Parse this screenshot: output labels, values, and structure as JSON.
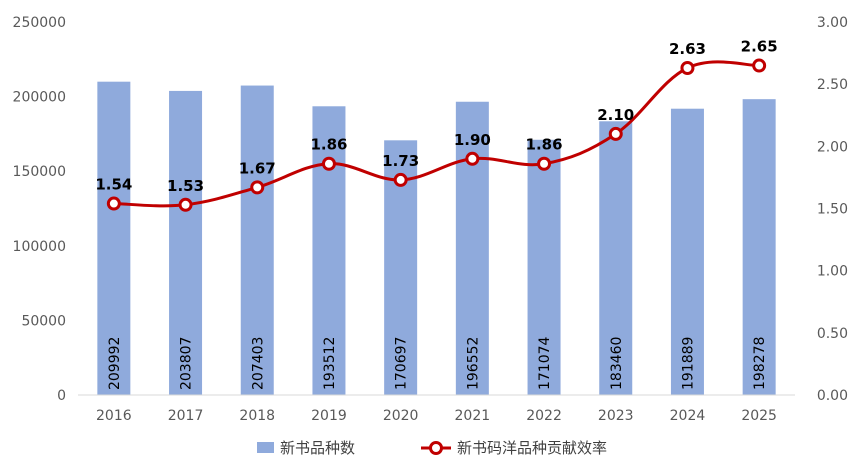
{
  "chart_data": {
    "type": "bar",
    "categories": [
      "2016",
      "2017",
      "2018",
      "2019",
      "2020",
      "2021",
      "2022",
      "2023",
      "2024",
      "2025"
    ],
    "series": [
      {
        "name": "新书品种数",
        "type": "bar",
        "axis": "left",
        "color": "#8FAADC",
        "values": [
          209992,
          203807,
          207403,
          193512,
          170697,
          196552,
          171074,
          183460,
          191889,
          198278
        ],
        "labels": [
          "209992",
          "203807",
          "207403",
          "193512",
          "170697",
          "196552",
          "171074",
          "183460",
          "191889",
          "198278"
        ]
      },
      {
        "name": "新书码洋品种贡献效率",
        "type": "line",
        "axis": "right",
        "color": "#C00000",
        "values": [
          1.54,
          1.53,
          1.67,
          1.86,
          1.73,
          1.9,
          1.86,
          2.1,
          2.63,
          2.65
        ],
        "labels": [
          "1.54",
          "1.53",
          "1.67",
          "1.86",
          "1.73",
          "1.90",
          "1.86",
          "2.10",
          "2.63",
          "2.65"
        ]
      }
    ],
    "y_left": {
      "range": [
        0,
        250000
      ],
      "ticks": [
        0,
        50000,
        100000,
        150000,
        200000,
        250000
      ],
      "tick_labels": [
        "0",
        "50000",
        "100000",
        "150000",
        "200000",
        "250000"
      ]
    },
    "y_right": {
      "range": [
        0,
        3
      ],
      "ticks": [
        0,
        0.5,
        1,
        1.5,
        2,
        2.5,
        3
      ],
      "tick_labels": [
        "0.00",
        "0.50",
        "1.00",
        "1.50",
        "2.00",
        "2.50",
        "3.00"
      ]
    },
    "grid": false,
    "legend_position": "bottom"
  }
}
